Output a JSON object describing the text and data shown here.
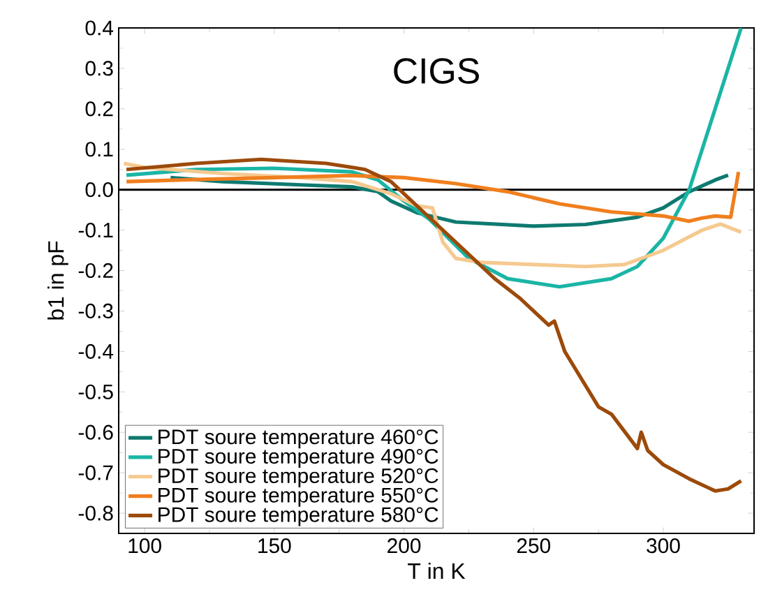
{
  "chart_data": {
    "type": "line",
    "title": "CIGS",
    "xlabel": "T in K",
    "ylabel": "b1 in pF",
    "xlim": [
      90,
      335
    ],
    "ylim": [
      -0.85,
      0.4
    ],
    "xticks": [
      100,
      150,
      200,
      250,
      300
    ],
    "yticks": [
      -0.8,
      -0.7,
      -0.6,
      -0.5,
      -0.4,
      -0.3,
      -0.2,
      -0.1,
      {
        "value": 0,
        "label": "0.0"
      },
      0.1,
      0.2,
      0.3,
      0.4
    ],
    "ref_lines": [
      {
        "axis": "y",
        "value": 0,
        "color": "#000000"
      }
    ],
    "legend": "bottom left",
    "grid": false,
    "marker": "none",
    "line_style": "solid",
    "series": [
      {
        "name": "PDT soure temperature 460°C",
        "color": "#0e7a70",
        "x": [
          110,
          130,
          160,
          180,
          190,
          195,
          205,
          220,
          250,
          270,
          290,
          300,
          310,
          320,
          325
        ],
        "values": [
          0.03,
          0.02,
          0.012,
          0.007,
          -0.005,
          -0.028,
          -0.057,
          -0.08,
          -0.09,
          -0.086,
          -0.068,
          -0.045,
          -0.005,
          0.024,
          0.036
        ]
      },
      {
        "name": "PDT soure temperature 490°C",
        "color": "#1ab5a5",
        "x": [
          93,
          120,
          150,
          180,
          190,
          200,
          210,
          225,
          240,
          260,
          280,
          290,
          300,
          310,
          320,
          330
        ],
        "values": [
          0.036,
          0.05,
          0.053,
          0.044,
          0.024,
          -0.028,
          -0.074,
          -0.17,
          -0.22,
          -0.24,
          -0.22,
          -0.19,
          -0.12,
          0.0,
          0.2,
          0.4
        ]
      },
      {
        "name": "PDT soure temperature 520°C",
        "color": "#f5c98f",
        "x": [
          92,
          100,
          130,
          160,
          180,
          195,
          205,
          211,
          215,
          220,
          230,
          250,
          270,
          285,
          300,
          315,
          322,
          330
        ],
        "values": [
          0.065,
          0.055,
          0.04,
          0.03,
          0.02,
          -0.01,
          -0.04,
          -0.045,
          -0.13,
          -0.17,
          -0.18,
          -0.185,
          -0.19,
          -0.185,
          -0.15,
          -0.1,
          -0.085,
          -0.105
        ]
      },
      {
        "name": "PDT soure temperature 550°C",
        "color": "#f07f1e",
        "x": [
          93,
          120,
          150,
          180,
          200,
          220,
          240,
          260,
          280,
          300,
          310,
          315,
          320,
          326,
          329
        ],
        "values": [
          0.02,
          0.025,
          0.03,
          0.035,
          0.03,
          0.015,
          -0.005,
          -0.035,
          -0.055,
          -0.065,
          -0.078,
          -0.07,
          -0.065,
          -0.068,
          0.044
        ]
      },
      {
        "name": "PDT soure temperature 580°C",
        "color": "#9c4a0a",
        "x": [
          93,
          120,
          145,
          170,
          185,
          195,
          205,
          215,
          225,
          235,
          245,
          255.8,
          258,
          262,
          275,
          280,
          290,
          291.5,
          294,
          300,
          310,
          320,
          325,
          330
        ],
        "values": [
          0.05,
          0.065,
          0.075,
          0.065,
          0.05,
          0.02,
          -0.04,
          -0.1,
          -0.16,
          -0.22,
          -0.27,
          -0.335,
          -0.325,
          -0.4,
          -0.537,
          -0.555,
          -0.64,
          -0.6,
          -0.645,
          -0.68,
          -0.715,
          -0.745,
          -0.74,
          -0.72
        ]
      }
    ]
  }
}
